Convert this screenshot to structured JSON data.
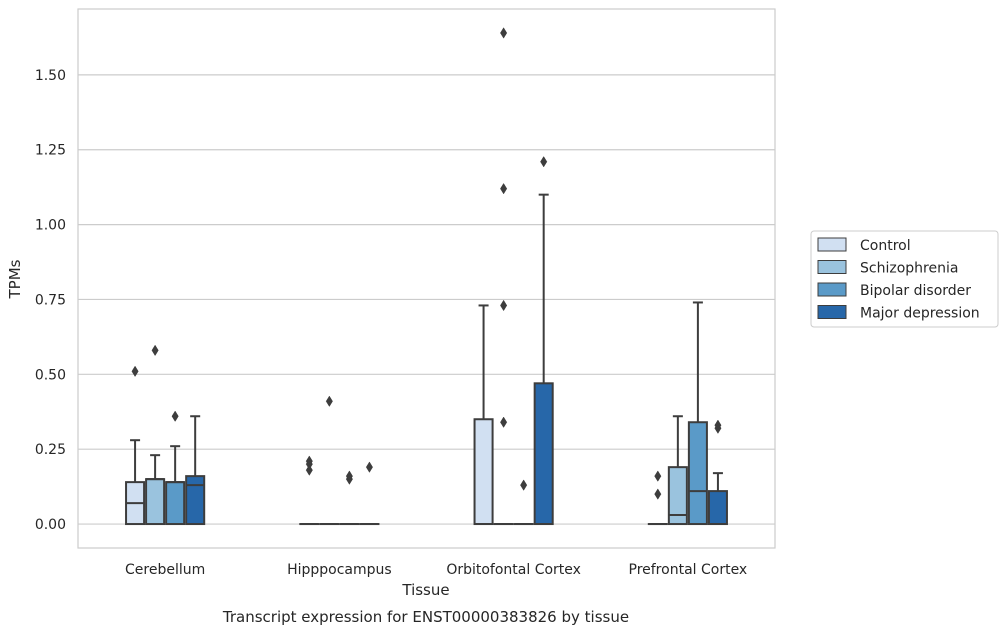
{
  "chart_data": {
    "type": "boxplot",
    "xlabel": "Tissue",
    "ylabel": "TPMs",
    "caption": "Transcript expression for ENST00000383826 by tissue",
    "ylim": [
      -0.08,
      1.72
    ],
    "yticks": [
      0.0,
      0.25,
      0.5,
      0.75,
      1.0,
      1.25,
      1.5
    ],
    "ytick_labels": [
      "0.00",
      "0.25",
      "0.50",
      "0.75",
      "1.00",
      "1.25",
      "1.50"
    ],
    "grid": "horizontal",
    "legend_position": "right",
    "categories": [
      "Cerebellum",
      "Hipppocampus",
      "Orbitofontal Cortex",
      "Prefrontal Cortex"
    ],
    "series": [
      {
        "name": "Control",
        "color": "#d1e0f2",
        "boxes": [
          {
            "q1": 0.0,
            "median": 0.07,
            "q3": 0.14,
            "whislo": 0.0,
            "whishi": 0.28,
            "fliers": [
              0.51
            ]
          },
          {
            "q1": 0.0,
            "median": 0.0,
            "q3": 0.0,
            "whislo": 0.0,
            "whishi": 0.0,
            "fliers": [
              0.18,
              0.2,
              0.21
            ]
          },
          {
            "q1": 0.0,
            "median": 0.0,
            "q3": 0.35,
            "whislo": 0.0,
            "whishi": 0.73,
            "fliers": []
          },
          {
            "q1": 0.0,
            "median": 0.0,
            "q3": 0.0,
            "whislo": 0.0,
            "whishi": 0.0,
            "fliers": [
              0.1,
              0.16
            ]
          }
        ]
      },
      {
        "name": "Schizophrenia",
        "color": "#9ac3de",
        "boxes": [
          {
            "q1": 0.0,
            "median": 0.15,
            "q3": 0.15,
            "whislo": 0.0,
            "whishi": 0.23,
            "fliers": [
              0.58
            ]
          },
          {
            "q1": 0.0,
            "median": 0.0,
            "q3": 0.0,
            "whislo": 0.0,
            "whishi": 0.0,
            "fliers": [
              0.41
            ]
          },
          {
            "q1": 0.0,
            "median": 0.0,
            "q3": 0.0,
            "whislo": 0.0,
            "whishi": 0.0,
            "fliers": [
              0.34,
              0.73,
              1.12,
              1.64
            ]
          },
          {
            "q1": 0.0,
            "median": 0.03,
            "q3": 0.19,
            "whislo": 0.0,
            "whishi": 0.36,
            "fliers": []
          }
        ]
      },
      {
        "name": "Bipolar disorder",
        "color": "#5a9ac8",
        "boxes": [
          {
            "q1": 0.0,
            "median": 0.14,
            "q3": 0.14,
            "whislo": 0.0,
            "whishi": 0.26,
            "fliers": [
              0.36
            ]
          },
          {
            "q1": 0.0,
            "median": 0.0,
            "q3": 0.0,
            "whislo": 0.0,
            "whishi": 0.0,
            "fliers": [
              0.15,
              0.16
            ]
          },
          {
            "q1": 0.0,
            "median": 0.0,
            "q3": 0.0,
            "whislo": 0.0,
            "whishi": 0.0,
            "fliers": [
              0.13
            ]
          },
          {
            "q1": 0.0,
            "median": 0.11,
            "q3": 0.34,
            "whislo": 0.0,
            "whishi": 0.74,
            "fliers": []
          }
        ]
      },
      {
        "name": "Major depression",
        "color": "#2767a9",
        "boxes": [
          {
            "q1": 0.0,
            "median": 0.13,
            "q3": 0.16,
            "whislo": 0.0,
            "whishi": 0.36,
            "fliers": []
          },
          {
            "q1": 0.0,
            "median": 0.0,
            "q3": 0.0,
            "whislo": 0.0,
            "whishi": 0.0,
            "fliers": [
              0.19
            ]
          },
          {
            "q1": 0.0,
            "median": 0.0,
            "q3": 0.47,
            "whislo": 0.0,
            "whishi": 1.1,
            "fliers": [
              1.21
            ]
          },
          {
            "q1": 0.0,
            "median": 0.0,
            "q3": 0.11,
            "whislo": 0.0,
            "whishi": 0.17,
            "fliers": [
              0.32,
              0.33
            ]
          }
        ]
      }
    ]
  }
}
